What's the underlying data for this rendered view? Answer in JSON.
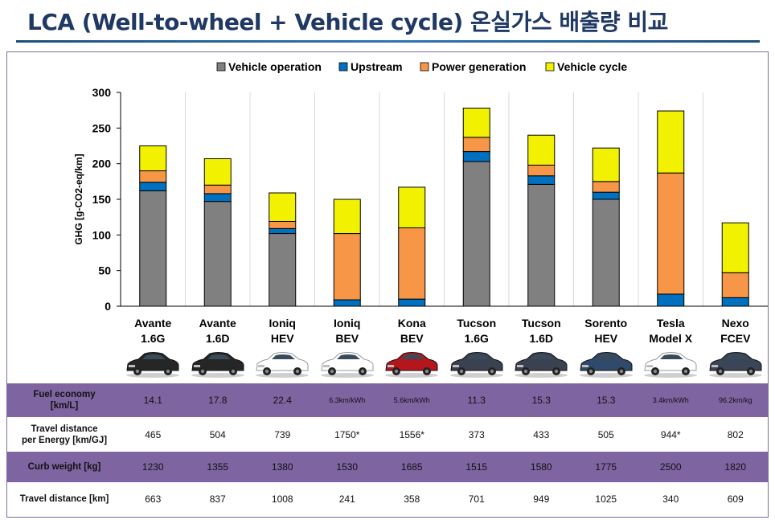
{
  "title": "LCA (Well-to-wheel + Vehicle cycle) 온실가스 배출량 비교",
  "legend": [
    {
      "label": "Vehicle operation",
      "color": "#808080"
    },
    {
      "label": "Upstream",
      "color": "#0070c0"
    },
    {
      "label": "Power generation",
      "color": "#f79646"
    },
    {
      "label": "Vehicle cycle",
      "color": "#f2f200"
    }
  ],
  "chart_data": {
    "type": "bar",
    "stacked": true,
    "ylabel": "GHG [g-CO2-eq/km]",
    "ylim": [
      0,
      300
    ],
    "yticks": [
      "0",
      "50",
      "100",
      "150",
      "200",
      "250",
      "300"
    ],
    "categories": [
      [
        "Avante",
        "1.6G"
      ],
      [
        "Avante",
        "1.6D"
      ],
      [
        "Ioniq",
        "HEV"
      ],
      [
        "Ioniq",
        "BEV"
      ],
      [
        "Kona",
        "BEV"
      ],
      [
        "Tucson",
        "1.6G"
      ],
      [
        "Tucson",
        "1.6D"
      ],
      [
        "Sorento",
        "HEV"
      ],
      [
        "Tesla",
        "Model X"
      ],
      [
        "Nexo",
        "FCEV"
      ]
    ],
    "series": [
      {
        "name": "Vehicle operation",
        "values": [
          162,
          147,
          102,
          0,
          0,
          203,
          171,
          150,
          0,
          0
        ]
      },
      {
        "name": "Upstream",
        "values": [
          12,
          11,
          7,
          9,
          10,
          14,
          12,
          10,
          17,
          12
        ]
      },
      {
        "name": "Power generation",
        "values": [
          16,
          12,
          10,
          93,
          100,
          20,
          15,
          15,
          170,
          35
        ]
      },
      {
        "name": "Vehicle cycle",
        "values": [
          35,
          37,
          40,
          48,
          57,
          41,
          42,
          47,
          87,
          70
        ]
      }
    ]
  },
  "car_colors": [
    "#262626",
    "#262626",
    "#ffffff",
    "#ffffff",
    "#b5161c",
    "#3a4150",
    "#3a4150",
    "#2f4a6a",
    "#ffffff",
    "#3a4658"
  ],
  "table": {
    "rows": [
      {
        "label": [
          "Fuel economy",
          "[km/L]"
        ],
        "values": [
          "14.1",
          "17.8",
          "22.4",
          "6.3km/kWh",
          "5.6km/kWh",
          "11.3",
          "15.3",
          "15.3",
          "3.4km/kWh",
          "96.2km/kg"
        ]
      },
      {
        "label": [
          "Travel distance",
          "per Energy [km/GJ]"
        ],
        "values": [
          "465",
          "504",
          "739",
          "1750*",
          "1556*",
          "373",
          "433",
          "505",
          "944*",
          "802"
        ]
      },
      {
        "label": [
          "Curb weight [kg]"
        ],
        "values": [
          "1230",
          "1355",
          "1380",
          "1530",
          "1685",
          "1515",
          "1580",
          "1775",
          "2500",
          "1820"
        ]
      },
      {
        "label": [
          "Travel distance [km]"
        ],
        "values": [
          "663",
          "837",
          "1008",
          "241",
          "358",
          "701",
          "949",
          "1025",
          "340",
          "609"
        ]
      }
    ]
  }
}
